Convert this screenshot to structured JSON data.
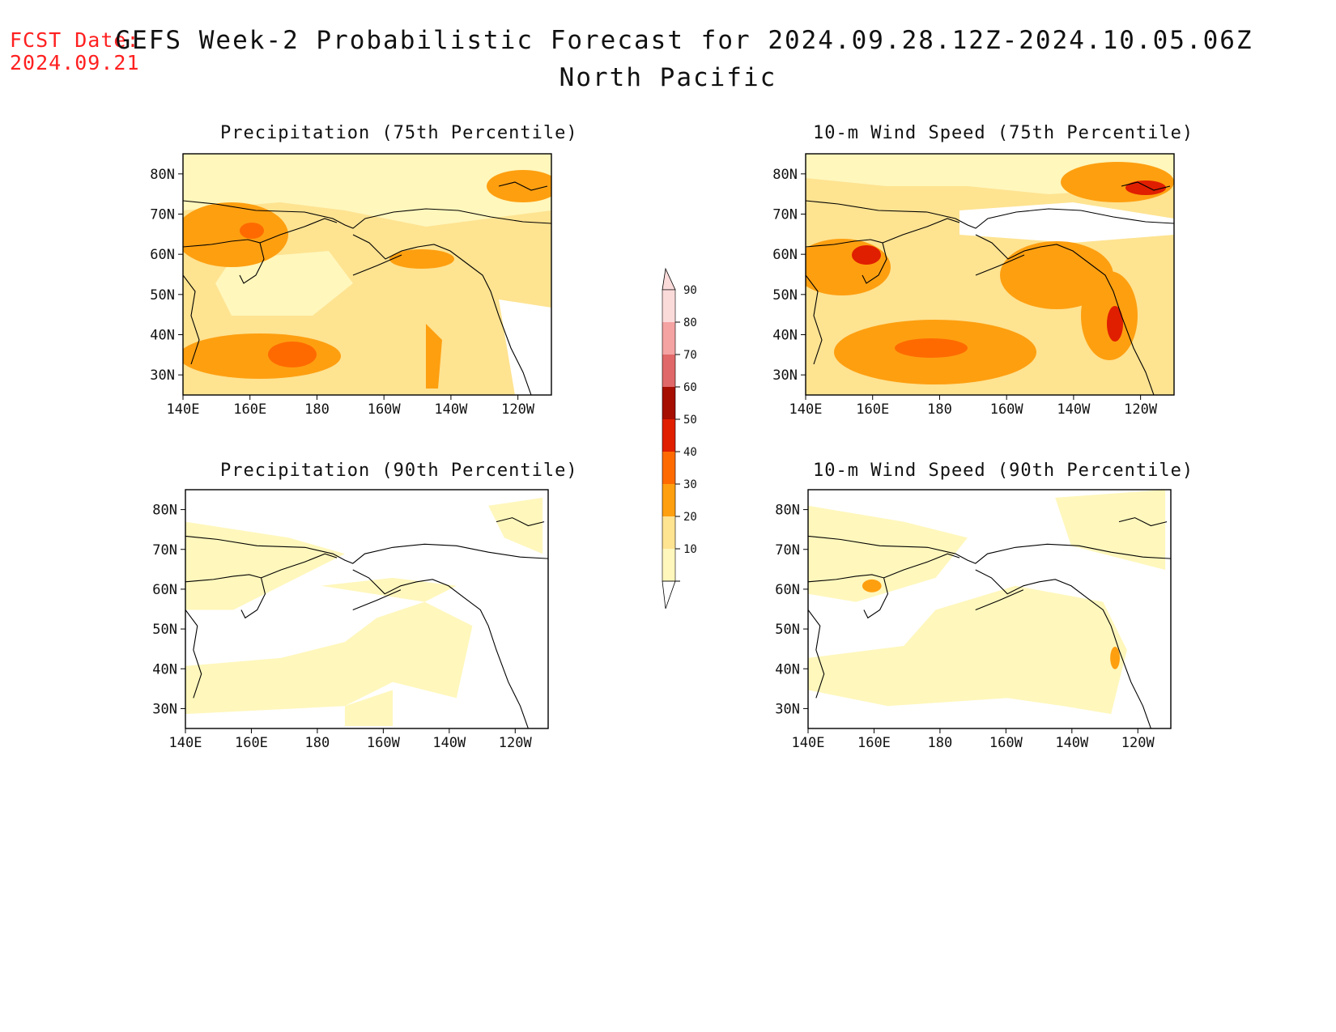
{
  "fcst": {
    "line1": "FCST Date:",
    "line2": "2024.09.21"
  },
  "title": {
    "main": "GEFS Week-2 Probabilistic Forecast for 2024.09.28.12Z-2024.10.05.06Z",
    "region": "North Pacific"
  },
  "axes": {
    "lat_labels": [
      "80N",
      "70N",
      "60N",
      "50N",
      "40N",
      "30N"
    ],
    "lon_labels": [
      "140E",
      "160E",
      "180",
      "160W",
      "140W",
      "120W"
    ]
  },
  "panels": [
    {
      "id": "p1",
      "title": "Precipitation (75th Percentile)",
      "intensity": "high"
    },
    {
      "id": "p2",
      "title": "10-m Wind Speed (75th Percentile)",
      "intensity": "high"
    },
    {
      "id": "p3",
      "title": "Precipitation (90th Percentile)",
      "intensity": "low"
    },
    {
      "id": "p4",
      "title": "10-m Wind Speed (90th Percentile)",
      "intensity": "low"
    }
  ],
  "colorbar": {
    "labels": [
      "10",
      "20",
      "30",
      "40",
      "50",
      "60",
      "70",
      "80",
      "90"
    ],
    "colors": [
      "#fff7bc",
      "#fee391",
      "#fe9f10",
      "#fe6a00",
      "#e01e00",
      "#a50e00",
      "#e06868",
      "#f4a2a2",
      "#fbdada"
    ]
  }
}
